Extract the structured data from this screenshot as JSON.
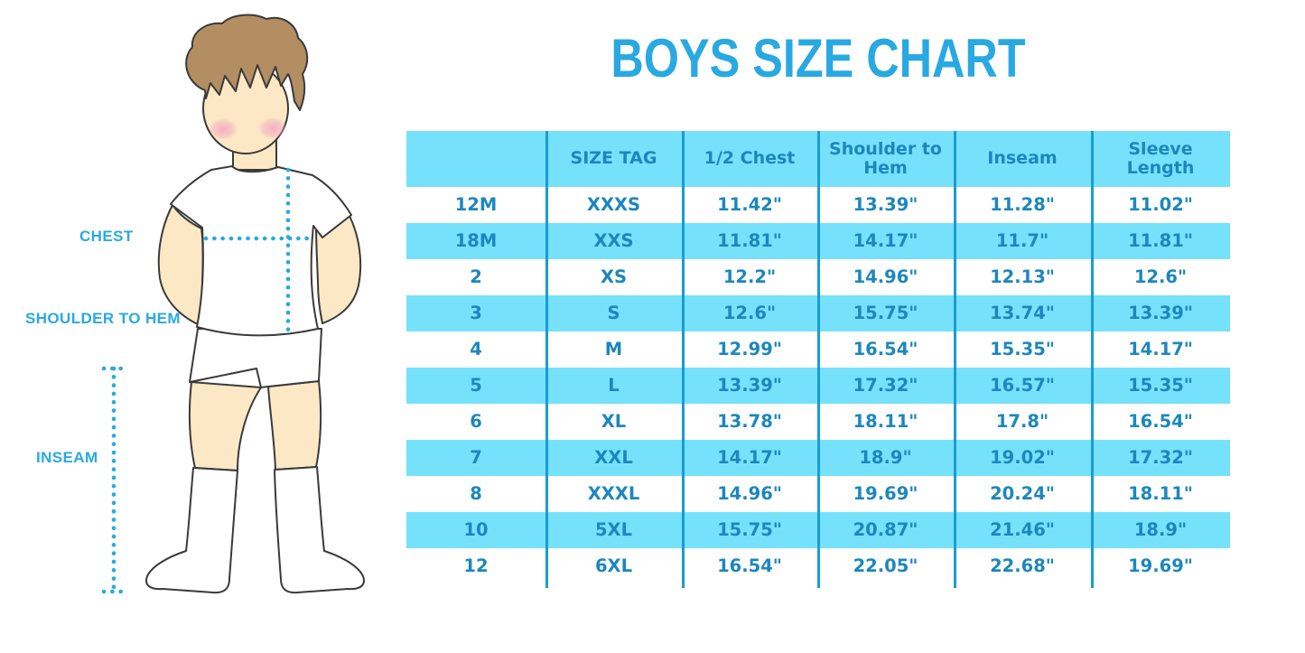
{
  "page_title": "BOYS SIZE CHART",
  "colors": {
    "title": "#29A9E1",
    "dots": "#29A9E1",
    "tabletext": "#1C87BD",
    "band": "#76E1FA",
    "divider": "#1A9CD4",
    "skin": "#FCE8C5",
    "hair": "#B28E62",
    "blush": "#F2A8C2",
    "outline": "#3A3A3A"
  },
  "figure": {
    "labels": {
      "chest": "CHEST",
      "shoulder_to_hem": "SHOULDER TO HEM",
      "inseam": "INSEAM"
    }
  },
  "chart_data": {
    "type": "table",
    "title": "BOYS SIZE CHART",
    "units": "inches",
    "columns": [
      "",
      "SIZE TAG",
      "1/2 Chest",
      "Shoulder to Hem",
      "Inseam",
      "Sleeve Length"
    ],
    "rows": [
      [
        "12M",
        "XXXS",
        "11.42\"",
        "13.39\"",
        "11.28\"",
        "11.02\""
      ],
      [
        "18M",
        "XXS",
        "11.81\"",
        "14.17\"",
        "11.7\"",
        "11.81\""
      ],
      [
        "2",
        "XS",
        "12.2\"",
        "14.96\"",
        "12.13\"",
        "12.6\""
      ],
      [
        "3",
        "S",
        "12.6\"",
        "15.75\"",
        "13.74\"",
        "13.39\""
      ],
      [
        "4",
        "M",
        "12.99\"",
        "16.54\"",
        "15.35\"",
        "14.17\""
      ],
      [
        "5",
        "L",
        "13.39\"",
        "17.32\"",
        "16.57\"",
        "15.35\""
      ],
      [
        "6",
        "XL",
        "13.78\"",
        "18.11\"",
        "17.8\"",
        "16.54\""
      ],
      [
        "7",
        "XXL",
        "14.17\"",
        "18.9\"",
        "19.02\"",
        "17.32\""
      ],
      [
        "8",
        "XXXL",
        "14.96\"",
        "19.69\"",
        "20.24\"",
        "18.11\""
      ],
      [
        "10",
        "5XL",
        "15.75\"",
        "20.87\"",
        "21.46\"",
        "18.9\""
      ],
      [
        "12",
        "6XL",
        "16.54\"",
        "22.05\"",
        "22.68\"",
        "19.69\""
      ]
    ]
  }
}
